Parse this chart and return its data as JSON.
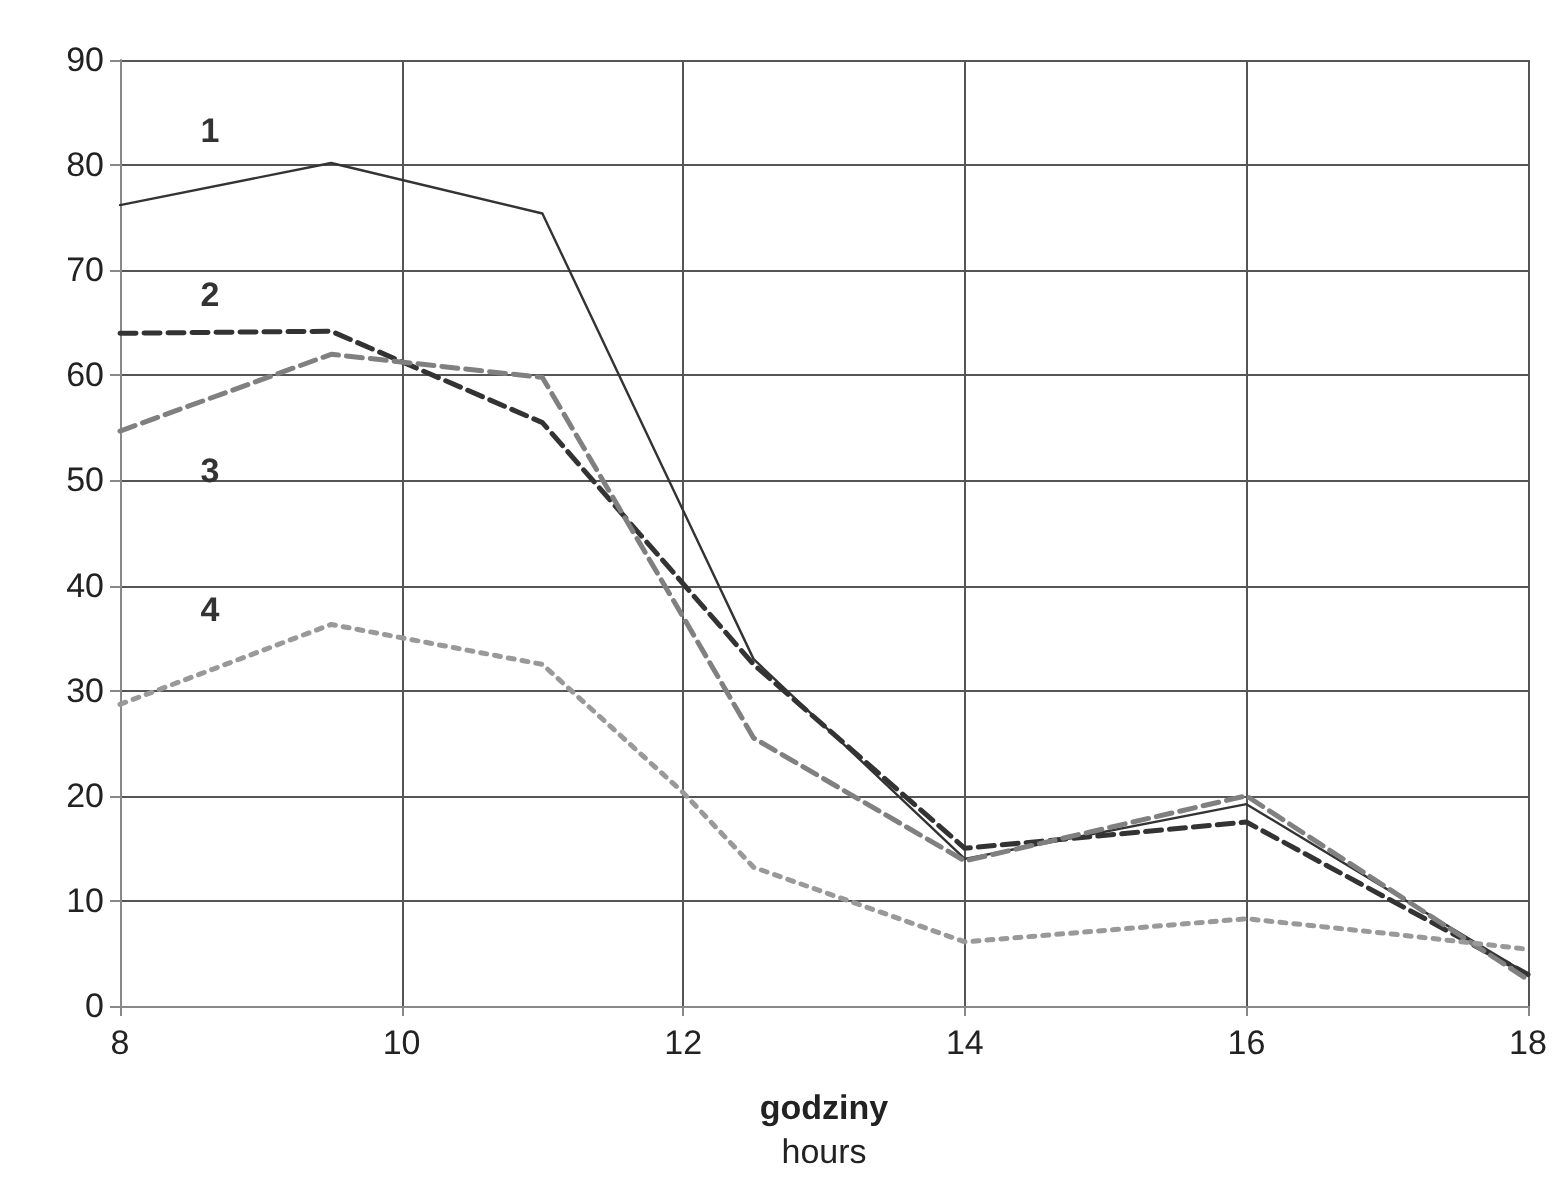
{
  "chart_data": {
    "type": "line",
    "xlabel": "godziny\nhours",
    "xlim": [
      8,
      18
    ],
    "xticks": [
      8,
      10,
      12,
      14,
      16,
      18
    ],
    "ylim": [
      0,
      90
    ],
    "yticks": [
      0,
      10,
      20,
      30,
      40,
      50,
      60,
      70,
      80,
      90
    ],
    "grid": true,
    "marker": "none",
    "series": [
      {
        "name": "1",
        "color": "#333333",
        "line_style": "solid",
        "x": [
          8,
          9.5,
          11,
          12.5,
          14,
          16,
          18
        ],
        "values": [
          76.2,
          80.2,
          75.4,
          33,
          14,
          19.2,
          3
        ]
      },
      {
        "name": "2",
        "color": "#333333",
        "line_style": "dashed",
        "x": [
          8,
          9.5,
          11,
          12.5,
          14,
          16,
          18
        ],
        "values": [
          64,
          64.2,
          55.5,
          32.5,
          15,
          17.5,
          3
        ]
      },
      {
        "name": "3",
        "color": "#808080",
        "line_style": "dashed",
        "x": [
          8,
          9.5,
          11,
          12,
          12.5,
          14,
          16,
          18
        ],
        "values": [
          54.7,
          62,
          59.8,
          37,
          25.5,
          13.8,
          20,
          2.5
        ]
      },
      {
        "name": "4",
        "color": "#999999",
        "line_style": "dotted",
        "x": [
          8,
          9.5,
          11,
          12,
          12.5,
          14,
          16,
          17,
          18
        ],
        "values": [
          28.7,
          36.3,
          32.5,
          20.3,
          13.2,
          6.1,
          8.3,
          6.9,
          5.4
        ]
      }
    ]
  }
}
